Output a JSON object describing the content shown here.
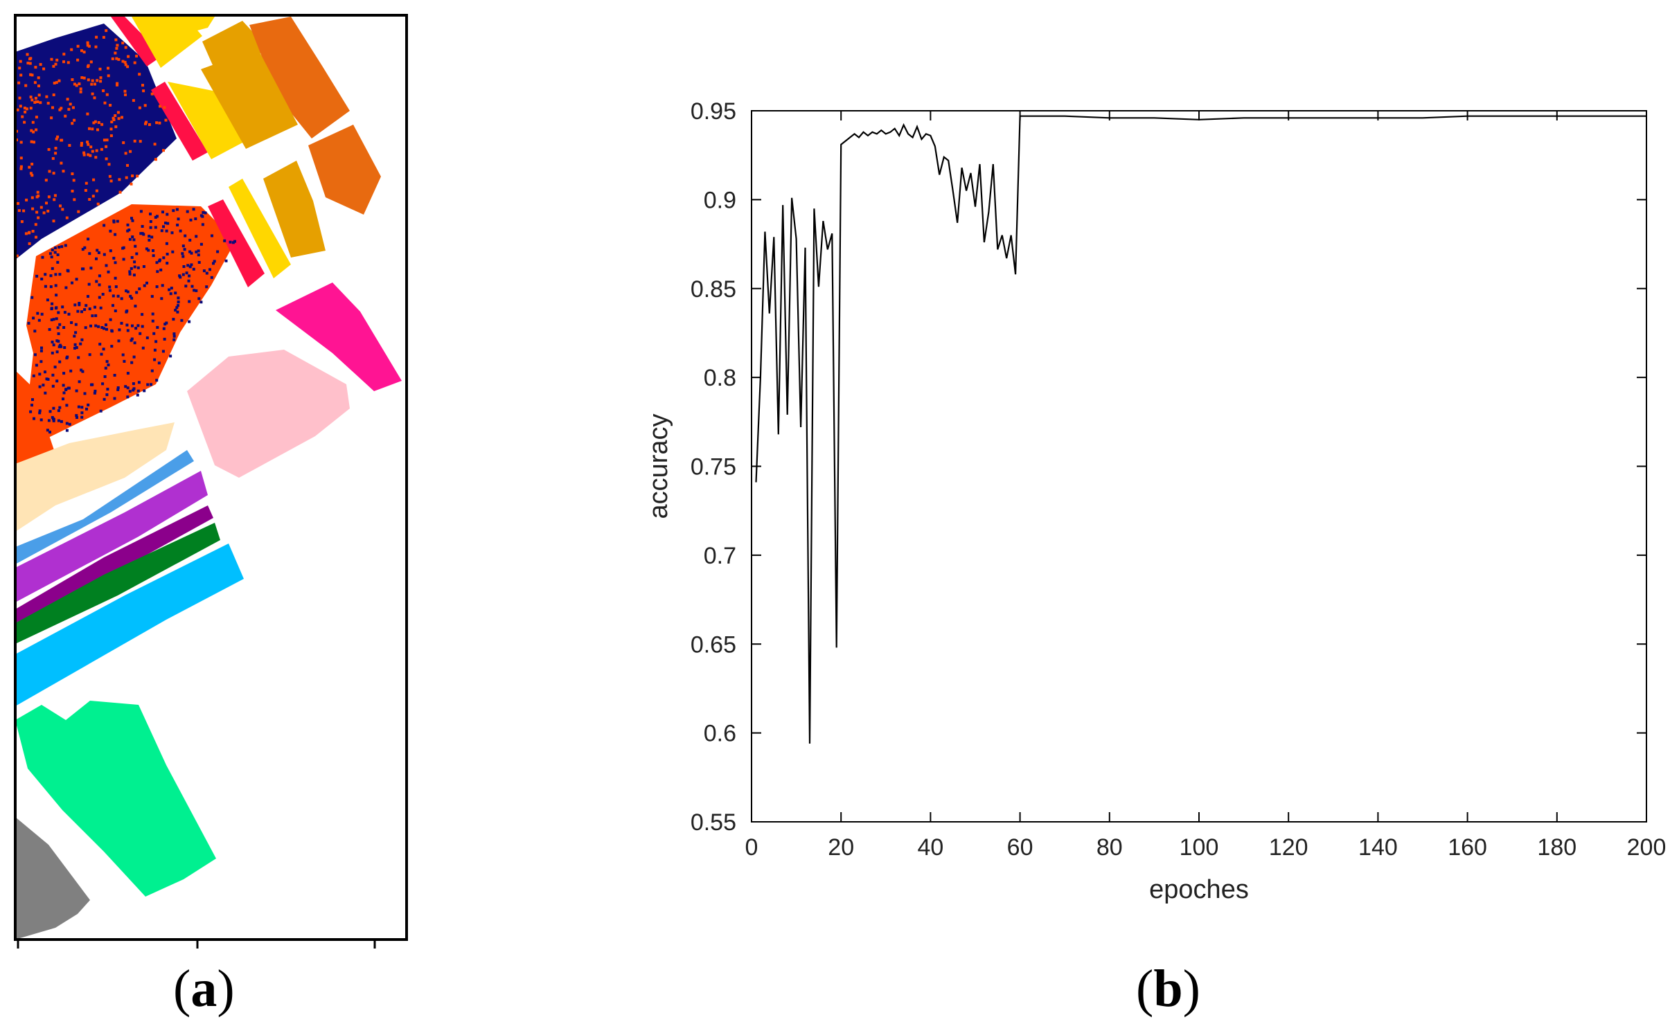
{
  "panels": {
    "a": {
      "label": "a"
    },
    "b": {
      "label": "b"
    }
  },
  "classification_map": {
    "class_colors": [
      "#0b0b7a",
      "#ff4500",
      "#ffd700",
      "#e6a000",
      "#e86a10",
      "#ff1046",
      "#ff1493",
      "#ffc0cb",
      "#ffe4b5",
      "#4a9ee8",
      "#b030d0",
      "#8b008b",
      "#008020",
      "#00bfff",
      "#00f090",
      "#808080"
    ]
  },
  "chart_data": {
    "type": "line",
    "xlabel": "epoches",
    "ylabel": "accuracy",
    "xlim": [
      0,
      200
    ],
    "ylim": [
      0.55,
      0.95
    ],
    "xticks": [
      0,
      20,
      40,
      60,
      80,
      100,
      120,
      140,
      160,
      180,
      200
    ],
    "yticks": [
      "0.55",
      "0.6",
      "0.65",
      "0.7",
      "0.75",
      "0.8",
      "0.85",
      "0.9",
      "0.95"
    ],
    "grid": false,
    "line_color": "#000000",
    "series": [
      {
        "x": [
          1,
          2,
          3,
          4,
          5,
          6,
          7,
          8,
          9,
          10,
          11,
          12,
          13,
          14,
          15,
          16,
          17,
          18,
          19,
          20,
          21,
          22,
          23,
          24,
          25,
          26,
          27,
          28,
          29,
          30,
          31,
          32,
          33,
          34,
          35,
          36,
          37,
          38,
          39,
          40,
          41,
          42,
          43,
          44,
          45,
          46,
          47,
          48,
          49,
          50,
          51,
          52,
          53,
          54,
          55,
          56,
          57,
          58,
          59,
          60,
          70,
          80,
          90,
          100,
          110,
          120,
          130,
          140,
          150,
          160,
          170,
          180,
          190,
          200
        ],
        "y": [
          0.741,
          0.8,
          0.882,
          0.836,
          0.879,
          0.768,
          0.897,
          0.779,
          0.901,
          0.878,
          0.772,
          0.873,
          0.594,
          0.895,
          0.851,
          0.888,
          0.872,
          0.881,
          0.648,
          0.931,
          0.933,
          0.935,
          0.937,
          0.935,
          0.938,
          0.936,
          0.938,
          0.937,
          0.939,
          0.937,
          0.938,
          0.94,
          0.936,
          0.942,
          0.937,
          0.935,
          0.941,
          0.934,
          0.937,
          0.936,
          0.93,
          0.914,
          0.924,
          0.922,
          0.905,
          0.887,
          0.918,
          0.905,
          0.915,
          0.896,
          0.92,
          0.876,
          0.893,
          0.92,
          0.872,
          0.88,
          0.867,
          0.88,
          0.858,
          0.947,
          0.947,
          0.946,
          0.946,
          0.945,
          0.946,
          0.946,
          0.946,
          0.946,
          0.946,
          0.947,
          0.947,
          0.947,
          0.947,
          0.947
        ]
      }
    ]
  }
}
